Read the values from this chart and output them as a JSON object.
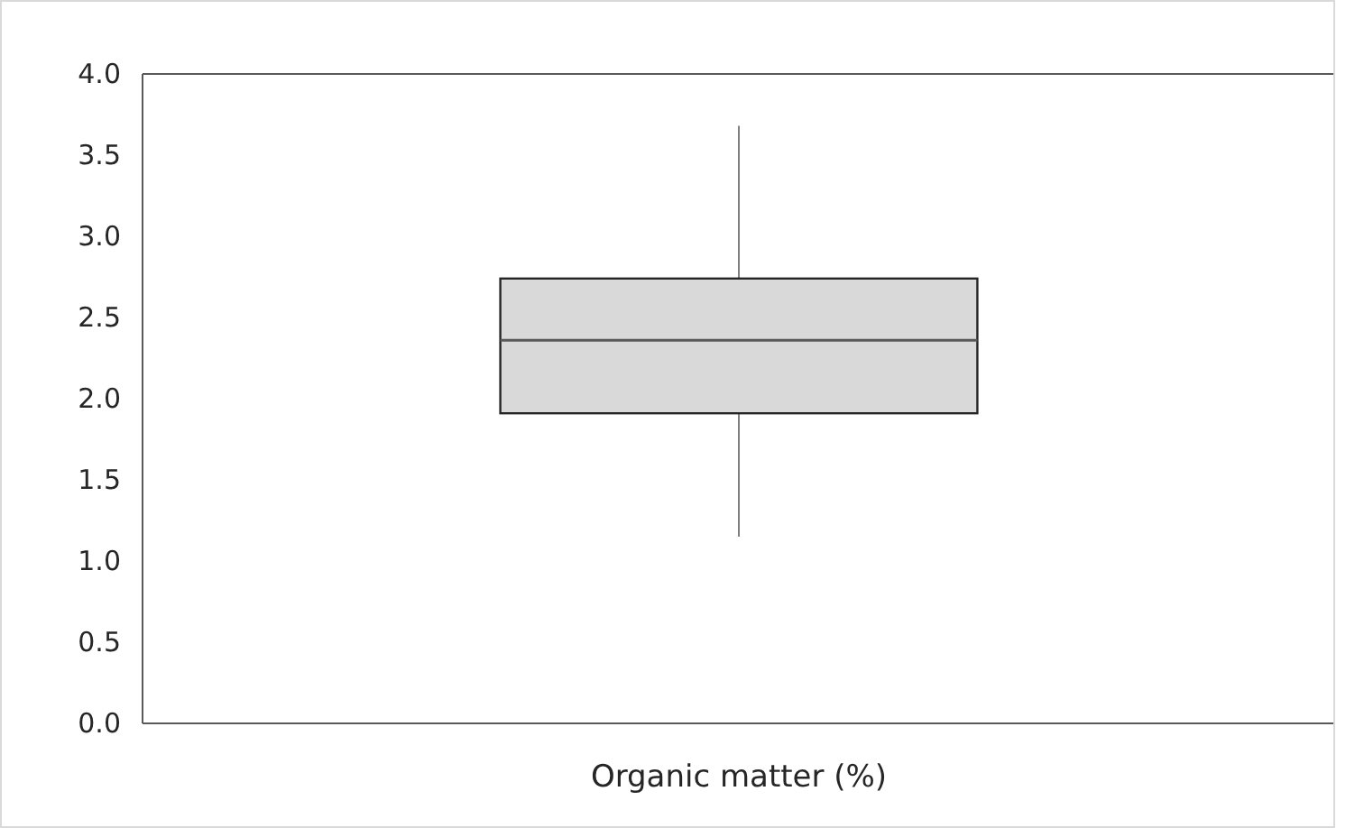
{
  "chart_data": {
    "type": "box",
    "categories": [
      "Organic matter (%)"
    ],
    "color": "#d9d9d9",
    "boxes": [
      {
        "low": 1.15,
        "q1": 1.91,
        "median": 2.36,
        "q3": 2.74,
        "high": 3.68
      }
    ],
    "ylim": [
      0,
      4
    ],
    "yticks": [
      {
        "value": 0,
        "label": "0.0"
      },
      {
        "value": 0.5,
        "label": "0.5"
      },
      {
        "value": 1,
        "label": "1.0"
      },
      {
        "value": 1.5,
        "label": "1.5"
      },
      {
        "value": 2,
        "label": "2.0"
      },
      {
        "value": 2.5,
        "label": "2.5"
      },
      {
        "value": 3,
        "label": "3.0"
      },
      {
        "value": 3.5,
        "label": "3.5"
      },
      {
        "value": 4,
        "label": "4.0"
      }
    ],
    "grid": false
  }
}
